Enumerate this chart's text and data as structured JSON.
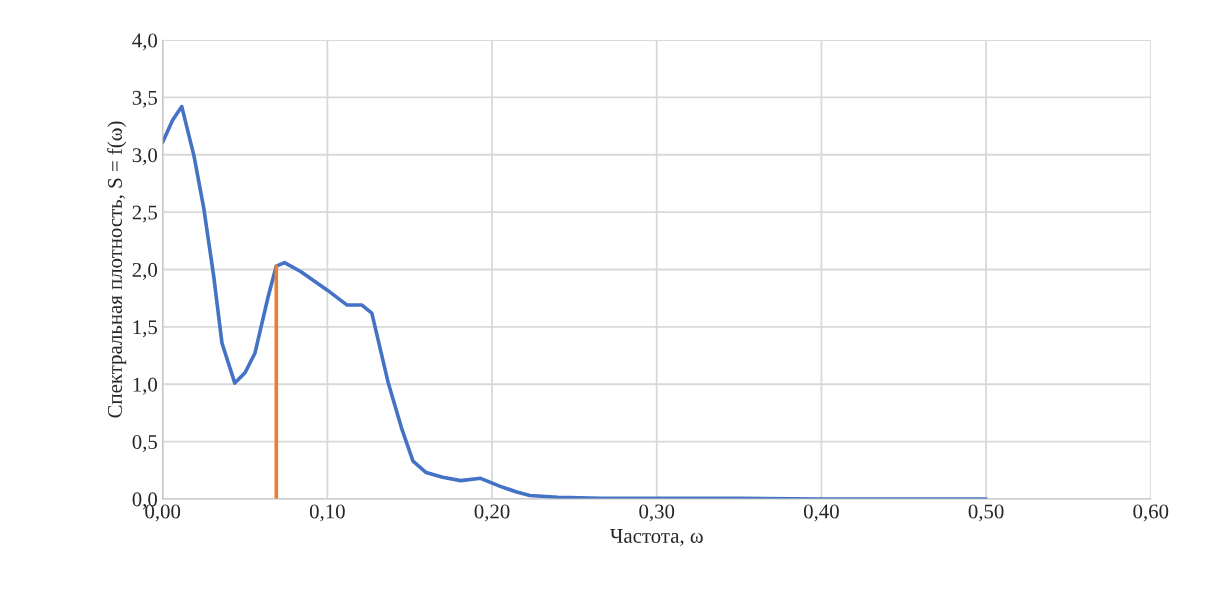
{
  "chart_data": {
    "type": "line",
    "xlabel": "Частота, ω",
    "ylabel": "Спектральная плотность, S = f(ω)",
    "series": [
      {
        "color": "#4472c4",
        "x": [
          0,
          0.006,
          0.0116,
          0.019,
          0.025,
          0.031,
          0.036,
          0.0438,
          0.05,
          0.056,
          0.064,
          0.069,
          0.074,
          0.084,
          0.1,
          0.112,
          0.121,
          0.127,
          0.137,
          0.145,
          0.152,
          0.16,
          0.17,
          0.181,
          0.193,
          0.205,
          0.215,
          0.223,
          0.24,
          0.266,
          0.3,
          0.35,
          0.4,
          0.45,
          0.5
        ],
        "values": [
          3.11,
          3.3,
          3.42,
          2.99,
          2.53,
          1.94,
          1.36,
          1.01,
          1.1,
          1.27,
          1.76,
          2.03,
          2.06,
          1.98,
          1.82,
          1.69,
          1.69,
          1.62,
          1.01,
          0.62,
          0.33,
          0.23,
          0.19,
          0.16,
          0.18,
          0.11,
          0.06,
          0.03,
          0.015,
          0.005,
          0.005,
          0.005,
          0.0,
          0.0,
          0.0
        ]
      },
      {
        "color": "#ed7d31",
        "x": [
          0.069,
          0.069
        ],
        "values": [
          0,
          2.03
        ]
      }
    ],
    "xlim": [
      0,
      0.6
    ],
    "ylim": [
      0,
      4.0
    ],
    "xticks": [
      {
        "value": 0,
        "label": "0,00"
      },
      {
        "value": 0.1,
        "label": "0,10"
      },
      {
        "value": 0.2,
        "label": "0,20"
      },
      {
        "value": 0.3,
        "label": "0,30"
      },
      {
        "value": 0.4,
        "label": "0,40"
      },
      {
        "value": 0.5,
        "label": "0,50"
      },
      {
        "value": 0.6,
        "label": "0,60"
      }
    ],
    "yticks": [
      {
        "value": 0,
        "label": "0,0"
      },
      {
        "value": 0.5,
        "label": "0,5"
      },
      {
        "value": 1.0,
        "label": "1,0"
      },
      {
        "value": 1.5,
        "label": "1,5"
      },
      {
        "value": 2.0,
        "label": "2,0"
      },
      {
        "value": 2.5,
        "label": "2,5"
      },
      {
        "value": 3.0,
        "label": "3,0"
      },
      {
        "value": 3.5,
        "label": "3,5"
      },
      {
        "value": 4.0,
        "label": "4,0"
      }
    ],
    "grid": true,
    "line_style": "solid"
  }
}
